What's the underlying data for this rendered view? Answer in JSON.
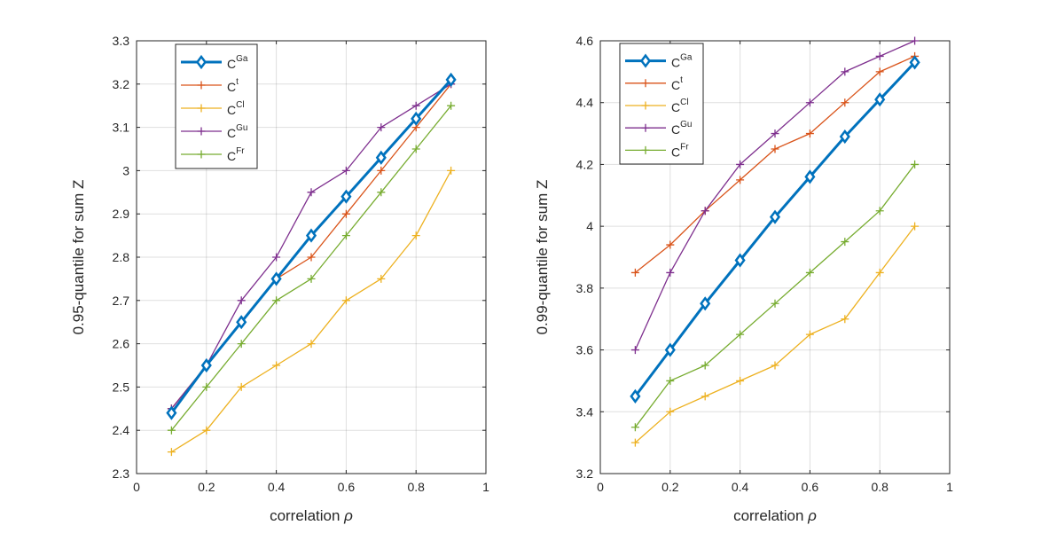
{
  "chart_data": [
    {
      "type": "line",
      "xlabel": "correlation",
      "xlabel_symbol": "ρ",
      "ylabel": "0.95-quantile for sum Z",
      "xlim": [
        0,
        1
      ],
      "ylim": [
        2.3,
        3.3
      ],
      "xticks": [
        "0",
        "0.2",
        "0.4",
        "0.6",
        "0.8",
        "1"
      ],
      "yticks": [
        "2.3",
        "2.4",
        "2.5",
        "2.6",
        "2.7",
        "2.8",
        "2.9",
        "3",
        "3.1",
        "3.2",
        "3.3"
      ],
      "grid": true,
      "legend_position": "top-left",
      "x": [
        0.1,
        0.2,
        0.3,
        0.4,
        0.5,
        0.6,
        0.7,
        0.8,
        0.9
      ],
      "series": [
        {
          "name": "C",
          "sup": "Ga",
          "color": "#0072BD",
          "marker": "diamond",
          "values": [
            2.44,
            2.55,
            2.65,
            2.75,
            2.85,
            2.94,
            3.03,
            3.12,
            3.21
          ]
        },
        {
          "name": "C",
          "sup": "t",
          "color": "#D95319",
          "marker": "plus",
          "values": [
            2.45,
            2.55,
            2.65,
            2.75,
            2.8,
            2.9,
            3.0,
            3.1,
            3.2
          ]
        },
        {
          "name": "C",
          "sup": "Cl",
          "color": "#EDB120",
          "marker": "plus",
          "values": [
            2.35,
            2.4,
            2.5,
            2.55,
            2.6,
            2.7,
            2.75,
            2.85,
            3.0
          ]
        },
        {
          "name": "C",
          "sup": "Gu",
          "color": "#7E2F8E",
          "marker": "plus",
          "values": [
            2.45,
            2.55,
            2.7,
            2.8,
            2.95,
            3.0,
            3.1,
            3.15,
            3.2
          ]
        },
        {
          "name": "C",
          "sup": "Fr",
          "color": "#77AC30",
          "marker": "plus",
          "values": [
            2.4,
            2.5,
            2.6,
            2.7,
            2.75,
            2.85,
            2.95,
            3.05,
            3.15
          ]
        }
      ]
    },
    {
      "type": "line",
      "xlabel": "correlation",
      "xlabel_symbol": "ρ",
      "ylabel": "0.99-quantile for sum Z",
      "xlim": [
        0,
        1
      ],
      "ylim": [
        3.2,
        4.6
      ],
      "xticks": [
        "0",
        "0.2",
        "0.4",
        "0.6",
        "0.8",
        "1"
      ],
      "yticks": [
        "3.2",
        "3.4",
        "3.6",
        "3.8",
        "4",
        "4.2",
        "4.4",
        "4.6"
      ],
      "grid": true,
      "legend_position": "top-left",
      "x": [
        0.1,
        0.2,
        0.3,
        0.4,
        0.5,
        0.6,
        0.7,
        0.8,
        0.9
      ],
      "series": [
        {
          "name": "C",
          "sup": "Ga",
          "color": "#0072BD",
          "marker": "diamond",
          "values": [
            3.45,
            3.6,
            3.75,
            3.89,
            4.03,
            4.16,
            4.29,
            4.41,
            4.53
          ]
        },
        {
          "name": "C",
          "sup": "t",
          "color": "#D95319",
          "marker": "plus",
          "values": [
            3.85,
            3.94,
            4.05,
            4.15,
            4.25,
            4.3,
            4.4,
            4.5,
            4.55
          ]
        },
        {
          "name": "C",
          "sup": "Cl",
          "color": "#EDB120",
          "marker": "plus",
          "values": [
            3.3,
            3.4,
            3.45,
            3.5,
            3.55,
            3.65,
            3.7,
            3.85,
            4.0
          ]
        },
        {
          "name": "C",
          "sup": "Gu",
          "color": "#7E2F8E",
          "marker": "plus",
          "values": [
            3.6,
            3.85,
            4.05,
            4.2,
            4.3,
            4.4,
            4.5,
            4.55,
            4.6
          ]
        },
        {
          "name": "C",
          "sup": "Fr",
          "color": "#77AC30",
          "marker": "plus",
          "values": [
            3.35,
            3.5,
            3.55,
            3.65,
            3.75,
            3.85,
            3.95,
            4.05,
            4.2
          ]
        }
      ]
    }
  ]
}
